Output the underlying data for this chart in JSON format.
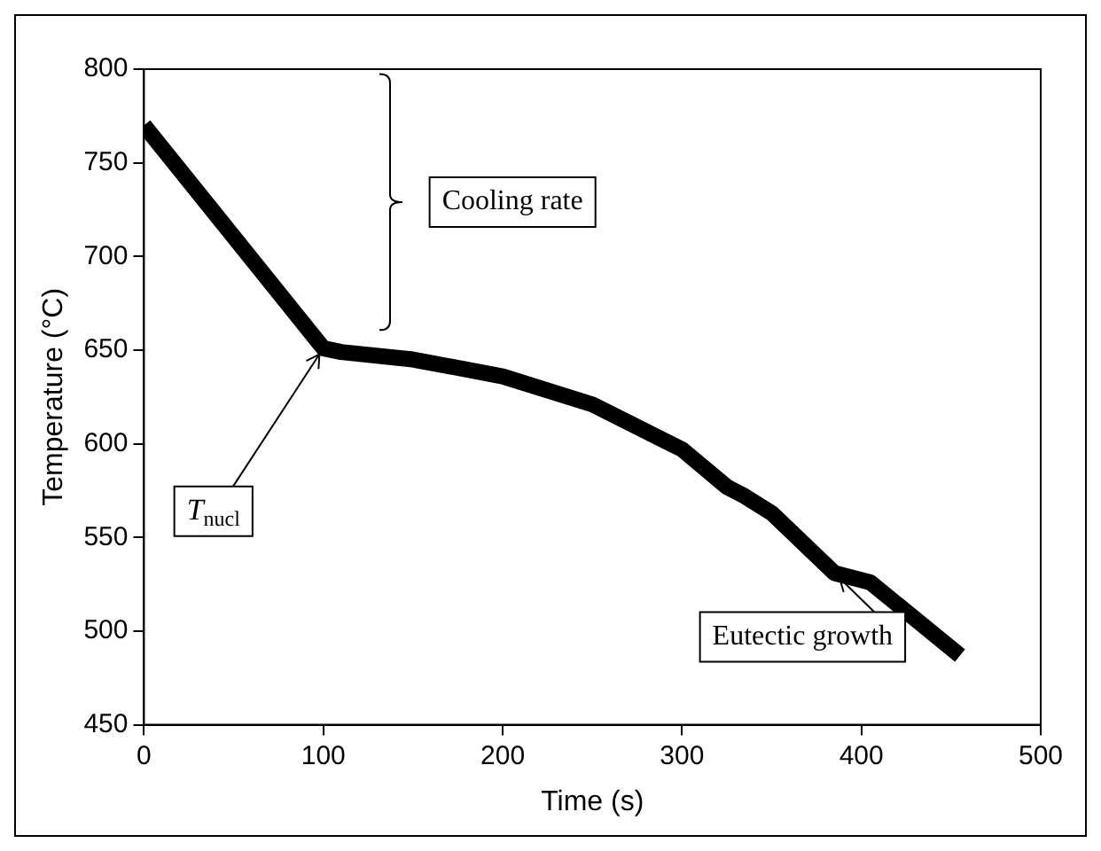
{
  "chart_data": {
    "type": "line",
    "xlabel": "Time (s)",
    "ylabel": "Temperature (°C)",
    "x": [
      0,
      100,
      110,
      150,
      200,
      250,
      300,
      325,
      335,
      350,
      385,
      405,
      455
    ],
    "series": [
      {
        "color": "#000000",
        "values": [
          770,
          651,
          649,
          645,
          636,
          621,
          597,
          577,
          572,
          563,
          531,
          526,
          487
        ]
      }
    ],
    "xlim": [
      0,
      500
    ],
    "xticks": [
      0,
      100,
      200,
      300,
      400,
      500
    ],
    "ylim": [
      450,
      800
    ],
    "yticks": [
      450,
      500,
      550,
      600,
      650,
      700,
      750,
      800
    ],
    "grid": false,
    "legend": false,
    "marker": "none",
    "line_style": "solid",
    "annotations": [
      "Cooling rate",
      {
        "text": "T$_{nucl}$",
        "x": 100,
        "y": 651
      },
      {
        "text": "Eutectic growth",
        "x": 385,
        "y": 531
      }
    ]
  }
}
